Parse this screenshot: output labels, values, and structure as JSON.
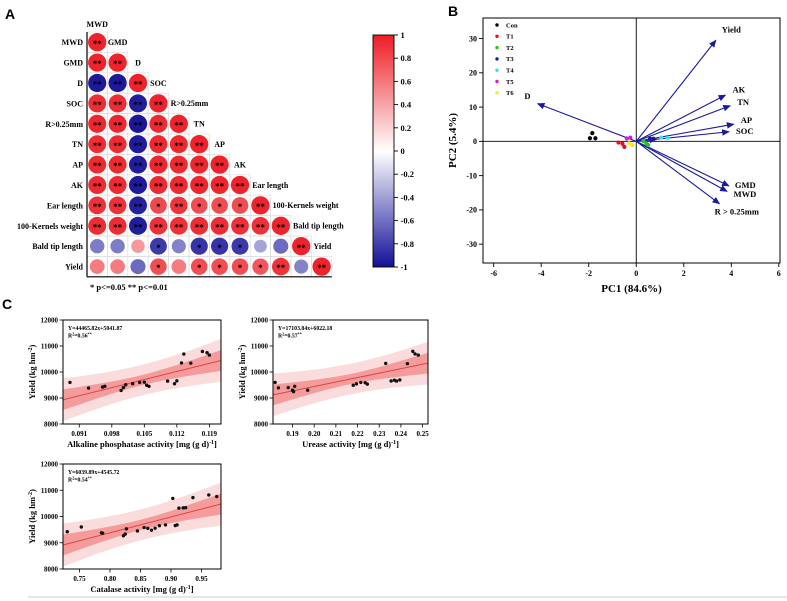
{
  "panels": {
    "a_label": "A",
    "b_label": "B",
    "c_label": "C"
  },
  "colors": {
    "fit_line": "#e04343",
    "band_inner": "#f49c9c",
    "band_outer": "#fbdcdc",
    "point_color": "#111111",
    "arrow_color": "#1a1a9e",
    "divider": "#cfcfcf"
  },
  "chart_data": [
    {
      "id": "correlation-matrix",
      "type": "heatmap",
      "variables": [
        "MWD",
        "GMD",
        "D",
        "SOC",
        "R>0.25mm",
        "TN",
        "AP",
        "AK",
        "Ear length",
        "100-Kernels weight",
        "Bald tip length",
        "Yield"
      ],
      "lower_triangle_r": [
        [
          0.97
        ],
        [
          0.96,
          0.97
        ],
        [
          -0.96,
          -0.96,
          0.97
        ],
        [
          0.93,
          0.93,
          -0.94,
          0.97
        ],
        [
          0.95,
          0.95,
          -0.97,
          0.94,
          0.97
        ],
        [
          0.93,
          0.93,
          -0.95,
          0.94,
          0.94,
          0.97
        ],
        [
          0.94,
          0.94,
          -0.94,
          0.95,
          0.94,
          0.95,
          0.97
        ],
        [
          0.94,
          0.94,
          -0.95,
          0.94,
          0.94,
          0.95,
          0.95,
          0.97
        ],
        [
          0.91,
          0.91,
          -0.93,
          0.8,
          0.89,
          0.79,
          0.79,
          0.79,
          0.97
        ],
        [
          0.93,
          0.93,
          -0.94,
          0.91,
          0.91,
          0.93,
          0.93,
          0.91,
          0.91,
          0.97
        ],
        [
          -0.55,
          -0.55,
          0.45,
          -0.82,
          -0.52,
          -0.85,
          -0.85,
          -0.83,
          -0.38,
          -0.62,
          0.97
        ],
        [
          0.58,
          0.58,
          -0.62,
          0.78,
          0.58,
          0.78,
          0.78,
          0.78,
          0.75,
          0.9,
          -0.52,
          0.97
        ]
      ],
      "significance": [
        [
          "**"
        ],
        [
          "**",
          "**"
        ],
        [
          "**",
          "**",
          "**"
        ],
        [
          "**",
          "**",
          "**",
          "**"
        ],
        [
          "**",
          "**",
          "**",
          "**",
          "**"
        ],
        [
          "**",
          "**",
          "**",
          "**",
          "**",
          "**"
        ],
        [
          "**",
          "**",
          "**",
          "**",
          "**",
          "**",
          "**"
        ],
        [
          "**",
          "**",
          "**",
          "**",
          "**",
          "**",
          "**",
          "**"
        ],
        [
          "**",
          "**",
          "**",
          "*",
          "**",
          "*",
          "*",
          "*",
          "**"
        ],
        [
          "**",
          "**",
          "**",
          "**",
          "**",
          "**",
          "**",
          "**",
          "**",
          "**"
        ],
        [
          "",
          "",
          "",
          "*",
          "",
          "*",
          "*",
          "*",
          "",
          "",
          "**"
        ],
        [
          "",
          "",
          "",
          "*",
          "",
          "*",
          "*",
          "*",
          "*",
          "**",
          "",
          "**"
        ]
      ],
      "sig_legend": "* p<=0.05 ** p<=0.01",
      "colorbar": {
        "ticks": [
          "1",
          "0.8",
          "0.6",
          "0.4",
          "0.2",
          "0",
          "-0.2",
          "-0.4",
          "-0.6",
          "-0.8",
          "-1"
        ],
        "max_color": "#ed1c24",
        "mid_color": "#ffffff",
        "min_color": "#131097"
      }
    },
    {
      "id": "pca-biplot",
      "type": "scatter",
      "xlabel": "PC1 (84.6%)",
      "ylabel": "PC2 (5.4%)",
      "xlim": [
        -6.45,
        6.05
      ],
      "ylim": [
        -35.5,
        36
      ],
      "xticks": [
        "-6",
        "-4",
        "-2",
        "0",
        "2",
        "4",
        "6"
      ],
      "yticks": [
        "-30",
        "-20",
        "-10",
        "0",
        "10",
        "20",
        "30"
      ],
      "legend_position": "top-left",
      "groups": [
        {
          "name": "Con",
          "color": "#000000",
          "points": [
            [
              -1.85,
              2.4
            ],
            [
              -1.95,
              0.9
            ],
            [
              -1.72,
              0.9
            ]
          ]
        },
        {
          "name": "T1",
          "color": "#dd1122",
          "points": [
            [
              -0.75,
              -0.35
            ],
            [
              -0.58,
              -0.7
            ],
            [
              -0.5,
              -1.6
            ]
          ]
        },
        {
          "name": "T2",
          "color": "#2bc42b",
          "points": [
            [
              0.3,
              0.1
            ],
            [
              0.42,
              -0.55
            ],
            [
              0.5,
              -1.05
            ]
          ]
        },
        {
          "name": "T3",
          "color": "#191996",
          "points": [
            [
              0.58,
              0.75
            ],
            [
              0.72,
              0.75
            ]
          ]
        },
        {
          "name": "T4",
          "color": "#3fe0dc",
          "points": [
            [
              1.05,
              1.1
            ],
            [
              1.32,
              1.0
            ]
          ]
        },
        {
          "name": "T5",
          "color": "#cc22cc",
          "points": [
            [
              -0.4,
              0.85
            ],
            [
              -0.25,
              1.1
            ]
          ]
        },
        {
          "name": "T6",
          "color": "#eeee22",
          "points": [
            [
              -0.3,
              -0.55
            ],
            [
              -0.16,
              -1.1
            ]
          ]
        }
      ],
      "vectors": [
        {
          "label": "Yield",
          "x": 3.35,
          "y": 29.5,
          "lx": 3.6,
          "ly": 31.8,
          "anchor": "start"
        },
        {
          "label": "AK",
          "x": 3.75,
          "y": 13.5,
          "lx": 4.05,
          "ly": 14.2,
          "anchor": "start"
        },
        {
          "label": "TN",
          "x": 3.95,
          "y": 10.4,
          "lx": 4.25,
          "ly": 10.6,
          "anchor": "start"
        },
        {
          "label": "AP",
          "x": 4.1,
          "y": 5.0,
          "lx": 4.4,
          "ly": 5.4,
          "anchor": "start"
        },
        {
          "label": "SOC",
          "x": 3.9,
          "y": 2.8,
          "lx": 4.2,
          "ly": 2.2,
          "anchor": "start"
        },
        {
          "label": "D",
          "x": -4.15,
          "y": 11.0,
          "lx": -4.45,
          "ly": 12.4,
          "anchor": "end"
        },
        {
          "label": "GMD",
          "x": 3.9,
          "y": -13.0,
          "lx": 4.15,
          "ly": -13.6,
          "anchor": "start"
        },
        {
          "label": "MWD",
          "x": 3.82,
          "y": -14.6,
          "lx": 4.1,
          "ly": -16.3,
          "anchor": "start"
        },
        {
          "label": "R > 0.25mm",
          "x": 3.5,
          "y": -18.2,
          "lx": 3.3,
          "ly": -21.3,
          "anchor": "start"
        },
        {
          "label": "",
          "x": 0.85,
          "y": 0.6,
          "lx": 0,
          "ly": 0,
          "anchor": "start"
        }
      ]
    },
    {
      "id": "alkaline-phosphatase-regression",
      "type": "scatter",
      "xlabel": "Alkaline phosphatase activity [mg (g d)^{-1}]",
      "ylabel": "Yield (kg hm^{-2})",
      "equation": "Y=44465.82x+5041.87",
      "r2": "R^{2}=0.56^{**}",
      "fit": {
        "slope": 44465.82,
        "intercept": 5041.87
      },
      "xlim": [
        0.0875,
        0.1215
      ],
      "ylim": [
        8000,
        12000
      ],
      "xticks": [
        "0.091",
        "0.098",
        "0.105",
        "0.112",
        "0.119"
      ],
      "yticks": [
        "8000",
        "9000",
        "10000",
        "11000",
        "12000"
      ],
      "points": [
        [
          0.089,
          9600
        ],
        [
          0.093,
          9380
        ],
        [
          0.096,
          9420
        ],
        [
          0.0965,
          9450
        ],
        [
          0.1,
          9290
        ],
        [
          0.1005,
          9400
        ],
        [
          0.101,
          9510
        ],
        [
          0.1025,
          9550
        ],
        [
          0.104,
          9600
        ],
        [
          0.105,
          9610
        ],
        [
          0.1055,
          9490
        ],
        [
          0.106,
          9450
        ],
        [
          0.11,
          9650
        ],
        [
          0.1115,
          9550
        ],
        [
          0.112,
          9660
        ],
        [
          0.113,
          10350
        ],
        [
          0.1135,
          10690
        ],
        [
          0.115,
          10340
        ],
        [
          0.1175,
          10790
        ],
        [
          0.1185,
          10740
        ],
        [
          0.119,
          10650
        ]
      ]
    },
    {
      "id": "urease-regression",
      "type": "scatter",
      "xlabel": "Urease activity [mg (g d)^{-1}]",
      "ylabel": "Yield (kg hm^{-2})",
      "equation": "Y=17103.84x+6022.18",
      "r2": "R^{2}=0.57^{**}",
      "fit": {
        "slope": 17103.84,
        "intercept": 6022.18
      },
      "xlim": [
        0.181,
        0.2525
      ],
      "ylim": [
        8000,
        12000
      ],
      "xticks": [
        "0.19",
        "0.20",
        "0.21",
        "0.22",
        "0.23",
        "0.24",
        "0.25"
      ],
      "yticks": [
        "8000",
        "9000",
        "10000",
        "11000",
        "12000"
      ],
      "points": [
        [
          0.182,
          9600
        ],
        [
          0.1835,
          9390
        ],
        [
          0.188,
          9400
        ],
        [
          0.19,
          9300
        ],
        [
          0.1905,
          9245
        ],
        [
          0.191,
          9450
        ],
        [
          0.197,
          9300
        ],
        [
          0.218,
          9490
        ],
        [
          0.2195,
          9545
        ],
        [
          0.2215,
          9600
        ],
        [
          0.2235,
          9590
        ],
        [
          0.2245,
          9535
        ],
        [
          0.233,
          10330
        ],
        [
          0.2355,
          9655
        ],
        [
          0.237,
          9685
        ],
        [
          0.238,
          9650
        ],
        [
          0.2395,
          9695
        ],
        [
          0.243,
          10320
        ],
        [
          0.2455,
          10795
        ],
        [
          0.2465,
          10695
        ],
        [
          0.248,
          10650
        ]
      ]
    },
    {
      "id": "catalase-regression",
      "type": "scatter",
      "xlabel": "Catalase activity [mg (g d)^{-1}]",
      "ylabel": "Yield (kg hm^{-2})",
      "equation": "Y=6039.89x+4545.72",
      "r2": "R^{2}=0.54^{**}",
      "fit": {
        "slope": 6039.89,
        "intercept": 4545.72
      },
      "xlim": [
        0.723,
        0.982
      ],
      "ylim": [
        8000,
        12000
      ],
      "xticks": [
        "0.75",
        "0.80",
        "0.85",
        "0.90",
        "0.95"
      ],
      "yticks": [
        "8000",
        "9000",
        "10000",
        "11000",
        "12000"
      ],
      "points": [
        [
          0.73,
          9420
        ],
        [
          0.753,
          9600
        ],
        [
          0.786,
          9380
        ],
        [
          0.788,
          9365
        ],
        [
          0.822,
          9265
        ],
        [
          0.825,
          9330
        ],
        [
          0.827,
          9530
        ],
        [
          0.845,
          9450
        ],
        [
          0.856,
          9580
        ],
        [
          0.862,
          9550
        ],
        [
          0.868,
          9480
        ],
        [
          0.874,
          9555
        ],
        [
          0.881,
          9650
        ],
        [
          0.891,
          9680
        ],
        [
          0.903,
          10690
        ],
        [
          0.907,
          9655
        ],
        [
          0.91,
          9680
        ],
        [
          0.913,
          10320
        ],
        [
          0.92,
          10330
        ],
        [
          0.924,
          10335
        ],
        [
          0.936,
          10720
        ],
        [
          0.962,
          10820
        ],
        [
          0.975,
          10760
        ]
      ]
    }
  ]
}
